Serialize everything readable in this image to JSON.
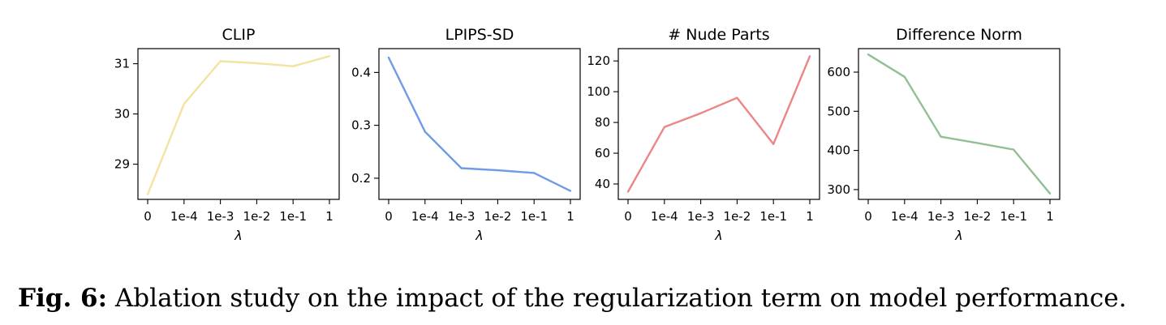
{
  "chart_data": [
    {
      "type": "line",
      "title": "CLIP",
      "xlabel": "λ",
      "ylabel": "",
      "categories": [
        "0",
        "1e-4",
        "1e-3",
        "1e-2",
        "1e-1",
        "1"
      ],
      "values": [
        28.4,
        30.2,
        31.05,
        31.01,
        30.95,
        31.15
      ],
      "yticks": [
        29,
        30,
        31
      ],
      "ylim": [
        28.3,
        31.3
      ],
      "color": "#f2e4a0"
    },
    {
      "type": "line",
      "title": "LPIPS-SD",
      "xlabel": "λ",
      "ylabel": "",
      "categories": [
        "0",
        "1e-4",
        "1e-3",
        "1e-2",
        "1e-1",
        "1"
      ],
      "values": [
        0.428,
        0.288,
        0.219,
        0.215,
        0.21,
        0.176
      ],
      "yticks": [
        "0.2",
        "0.3",
        "0.4"
      ],
      "ylim": [
        0.16,
        0.445
      ],
      "color": "#6f9ae8"
    },
    {
      "type": "line",
      "title": "# Nude Parts",
      "xlabel": "λ",
      "ylabel": "",
      "categories": [
        "0",
        "1e-4",
        "1e-3",
        "1e-2",
        "1e-1",
        "1"
      ],
      "values": [
        35,
        77,
        86,
        96,
        66,
        123
      ],
      "yticks": [
        40,
        60,
        80,
        100,
        120
      ],
      "ylim": [
        30,
        128
      ],
      "color": "#ec8686"
    },
    {
      "type": "line",
      "title": "Difference Norm",
      "xlabel": "λ",
      "ylabel": "",
      "categories": [
        "0",
        "1e-4",
        "1e-3",
        "1e-2",
        "1e-1",
        "1"
      ],
      "values": [
        645,
        588,
        435,
        419,
        402,
        290
      ],
      "yticks": [
        300,
        400,
        500,
        600
      ],
      "ylim": [
        275,
        660
      ],
      "color": "#92c095"
    }
  ],
  "caption": {
    "label": "Fig. 6:",
    "text": " Ablation study on the impact of the regularization term on model performance."
  }
}
